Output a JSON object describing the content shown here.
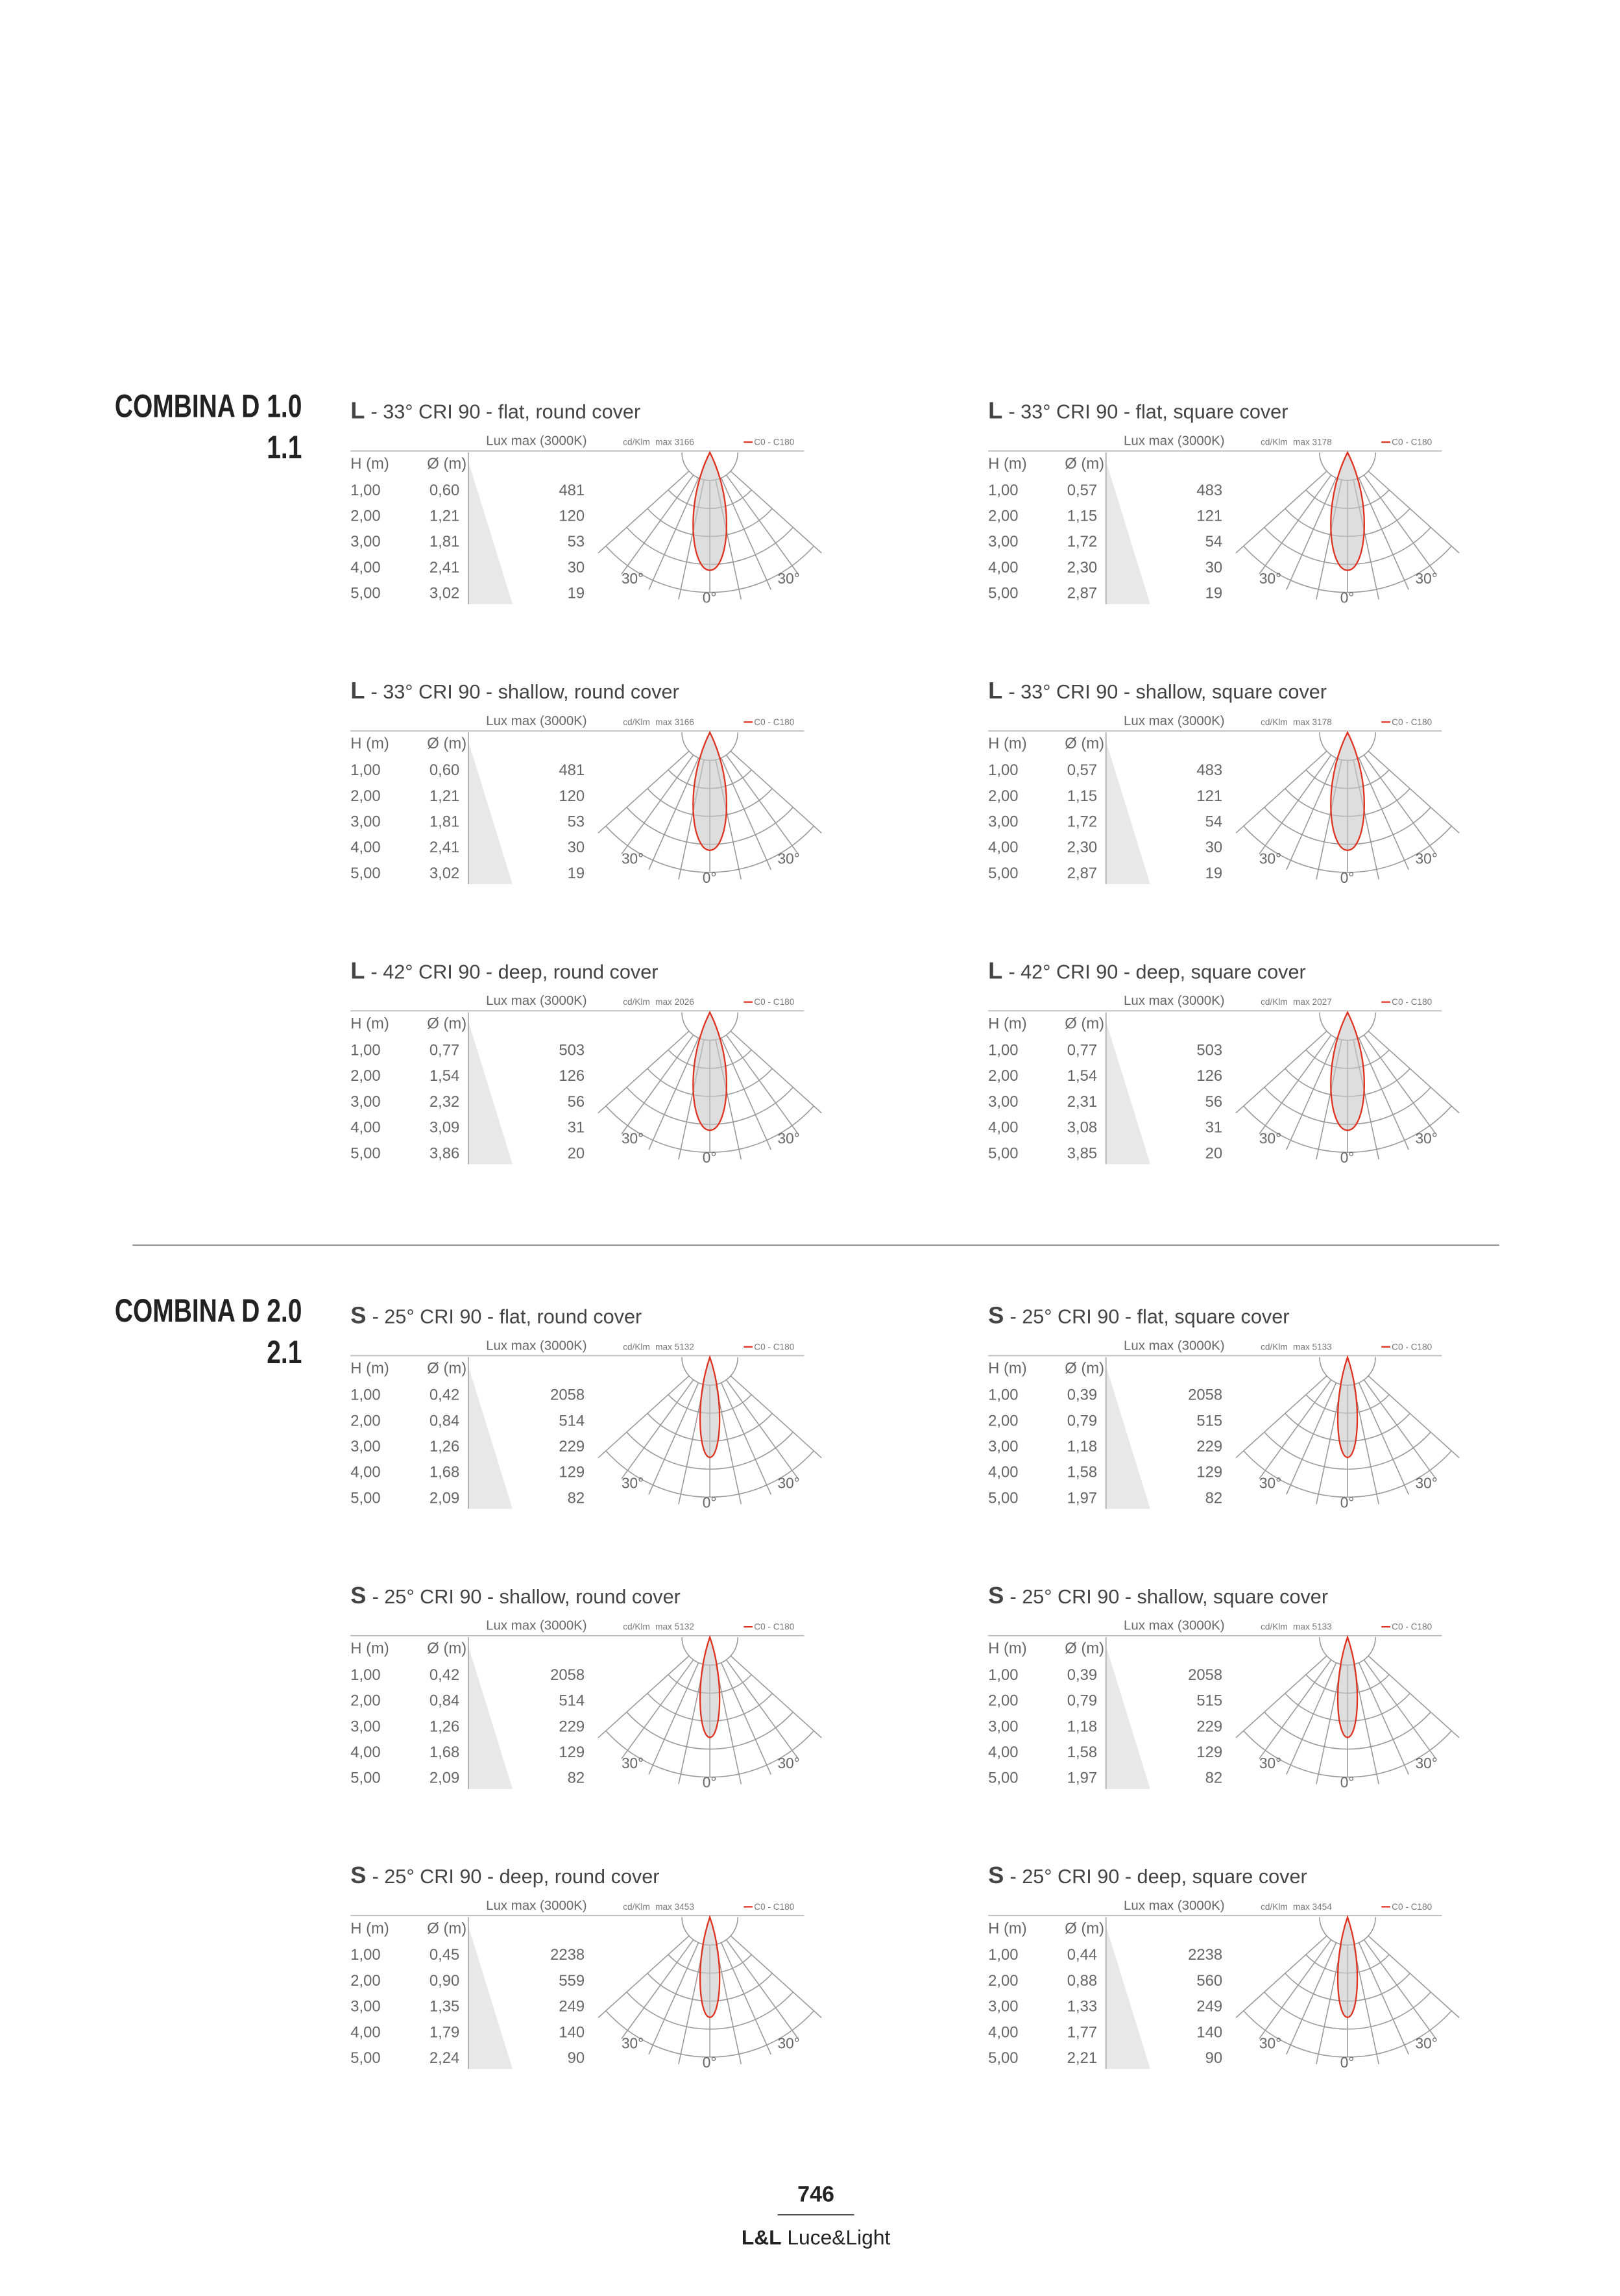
{
  "diagram": {
    "lux_header": "Lux max (3000K)",
    "col_h": "H (m)",
    "col_d": "Ø (m)",
    "cd_unit": "cd/Klm",
    "legend": "C0 - C180",
    "angle_left": "30°",
    "angle_right": "30°",
    "angle_zero": "0°"
  },
  "sections": [
    {
      "title": [
        "COMBINA D 1.0",
        "1.1"
      ],
      "blocks": [
        {
          "letter": "L",
          "title": "- 33°  CRI 90 - flat, round cover",
          "max": "max 3166",
          "rows": [
            [
              "1,00",
              "0,60",
              "481"
            ],
            [
              "2,00",
              "1,21",
              "120"
            ],
            [
              "3,00",
              "1,81",
              "53"
            ],
            [
              "4,00",
              "2,41",
              "30"
            ],
            [
              "5,00",
              "3,02",
              "19"
            ]
          ]
        },
        {
          "letter": "L",
          "title": "- 33°  CRI 90 - flat, square cover",
          "max": "max 3178",
          "rows": [
            [
              "1,00",
              "0,57",
              "483"
            ],
            [
              "2,00",
              "1,15",
              "121"
            ],
            [
              "3,00",
              "1,72",
              "54"
            ],
            [
              "4,00",
              "2,30",
              "30"
            ],
            [
              "5,00",
              "2,87",
              "19"
            ]
          ]
        },
        {
          "letter": "L",
          "title": "- 33°  CRI 90 - shallow, round cover",
          "max": "max 3166",
          "rows": [
            [
              "1,00",
              "0,60",
              "481"
            ],
            [
              "2,00",
              "1,21",
              "120"
            ],
            [
              "3,00",
              "1,81",
              "53"
            ],
            [
              "4,00",
              "2,41",
              "30"
            ],
            [
              "5,00",
              "3,02",
              "19"
            ]
          ]
        },
        {
          "letter": "L",
          "title": "- 33°  CRI 90 - shallow, square cover",
          "max": "max 3178",
          "rows": [
            [
              "1,00",
              "0,57",
              "483"
            ],
            [
              "2,00",
              "1,15",
              "121"
            ],
            [
              "3,00",
              "1,72",
              "54"
            ],
            [
              "4,00",
              "2,30",
              "30"
            ],
            [
              "5,00",
              "2,87",
              "19"
            ]
          ]
        },
        {
          "letter": "L",
          "title": "- 42°  CRI 90 - deep, round cover",
          "max": "max 2026",
          "rows": [
            [
              "1,00",
              "0,77",
              "503"
            ],
            [
              "2,00",
              "1,54",
              "126"
            ],
            [
              "3,00",
              "2,32",
              "56"
            ],
            [
              "4,00",
              "3,09",
              "31"
            ],
            [
              "5,00",
              "3,86",
              "20"
            ]
          ]
        },
        {
          "letter": "L",
          "title": "- 42°  CRI 90 - deep, square cover",
          "max": "max 2027",
          "rows": [
            [
              "1,00",
              "0,77",
              "503"
            ],
            [
              "2,00",
              "1,54",
              "126"
            ],
            [
              "3,00",
              "2,31",
              "56"
            ],
            [
              "4,00",
              "3,08",
              "31"
            ],
            [
              "5,00",
              "3,85",
              "20"
            ]
          ]
        }
      ]
    },
    {
      "title": [
        "COMBINA D 2.0",
        "2.1"
      ],
      "blocks": [
        {
          "letter": "S",
          "title": "- 25°  CRI 90 - flat, round cover",
          "max": "max 5132",
          "rows": [
            [
              "1,00",
              "0,42",
              "2058"
            ],
            [
              "2,00",
              "0,84",
              "514"
            ],
            [
              "3,00",
              "1,26",
              "229"
            ],
            [
              "4,00",
              "1,68",
              "129"
            ],
            [
              "5,00",
              "2,09",
              "82"
            ]
          ]
        },
        {
          "letter": "S",
          "title": "- 25°  CRI 90 - flat, square cover",
          "max": "max 5133",
          "rows": [
            [
              "1,00",
              "0,39",
              "2058"
            ],
            [
              "2,00",
              "0,79",
              "515"
            ],
            [
              "3,00",
              "1,18",
              "229"
            ],
            [
              "4,00",
              "1,58",
              "129"
            ],
            [
              "5,00",
              "1,97",
              "82"
            ]
          ]
        },
        {
          "letter": "S",
          "title": "- 25°  CRI 90 - shallow, round cover",
          "max": "max 5132",
          "rows": [
            [
              "1,00",
              "0,42",
              "2058"
            ],
            [
              "2,00",
              "0,84",
              "514"
            ],
            [
              "3,00",
              "1,26",
              "229"
            ],
            [
              "4,00",
              "1,68",
              "129"
            ],
            [
              "5,00",
              "2,09",
              "82"
            ]
          ]
        },
        {
          "letter": "S",
          "title": "- 25°  CRI 90 - shallow, square cover",
          "max": "max 5133",
          "rows": [
            [
              "1,00",
              "0,39",
              "2058"
            ],
            [
              "2,00",
              "0,79",
              "515"
            ],
            [
              "3,00",
              "1,18",
              "229"
            ],
            [
              "4,00",
              "1,58",
              "129"
            ],
            [
              "5,00",
              "1,97",
              "82"
            ]
          ]
        },
        {
          "letter": "S",
          "title": "- 25°  CRI 90 - deep, round cover",
          "max": "max 3453",
          "rows": [
            [
              "1,00",
              "0,45",
              "2238"
            ],
            [
              "2,00",
              "0,90",
              "559"
            ],
            [
              "3,00",
              "1,35",
              "249"
            ],
            [
              "4,00",
              "1,79",
              "140"
            ],
            [
              "5,00",
              "2,24",
              "90"
            ]
          ]
        },
        {
          "letter": "S",
          "title": "- 25°  CRI 90 - deep, square cover",
          "max": "max 3454",
          "rows": [
            [
              "1,00",
              "0,44",
              "2238"
            ],
            [
              "2,00",
              "0,88",
              "560"
            ],
            [
              "3,00",
              "1,33",
              "249"
            ],
            [
              "4,00",
              "1,77",
              "140"
            ],
            [
              "5,00",
              "2,21",
              "90"
            ]
          ]
        }
      ]
    }
  ],
  "footer": {
    "page": "746",
    "brand_bold": "L&L",
    "brand": "Luce&Light"
  }
}
